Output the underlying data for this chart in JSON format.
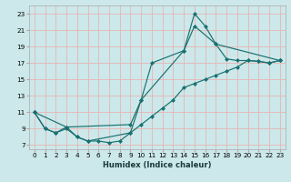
{
  "xlabel": "Humidex (Indice chaleur)",
  "bg_color": "#cce8ea",
  "grid_color_major": "#e8b4b4",
  "grid_color_minor": "#ddd8d8",
  "line_color": "#1a7070",
  "xlim": [
    -0.5,
    23.5
  ],
  "ylim": [
    6.5,
    24.0
  ],
  "xticks": [
    0,
    1,
    2,
    3,
    4,
    5,
    6,
    7,
    8,
    9,
    10,
    11,
    12,
    13,
    14,
    15,
    16,
    17,
    18,
    19,
    20,
    21,
    22,
    23
  ],
  "yticks": [
    7,
    9,
    11,
    13,
    15,
    17,
    19,
    21,
    23
  ],
  "line1_x": [
    0,
    1,
    2,
    3,
    4,
    5,
    6,
    7,
    8,
    9,
    10,
    11,
    12,
    13,
    14,
    15,
    16,
    17,
    18,
    19,
    20,
    21,
    22,
    23
  ],
  "line1_y": [
    11,
    9,
    8.5,
    9,
    8,
    7.5,
    7.5,
    7.3,
    7.5,
    8.5,
    9.5,
    10.5,
    11.5,
    12.5,
    14,
    14.5,
    15,
    15.5,
    16,
    16.5,
    17.3,
    17.2,
    17.0,
    17.3
  ],
  "line2_x": [
    0,
    1,
    2,
    3,
    4,
    5,
    9,
    10,
    11,
    14,
    15,
    16,
    17,
    18,
    19,
    20,
    21,
    22,
    23
  ],
  "line2_y": [
    11,
    9,
    8.5,
    9.2,
    8.0,
    7.5,
    8.5,
    12.5,
    17.0,
    18.5,
    23.0,
    21.5,
    19.3,
    17.5,
    17.3,
    17.3,
    17.2,
    17.0,
    17.3
  ],
  "line3_x": [
    0,
    3,
    9,
    10,
    14,
    15,
    17,
    23
  ],
  "line3_y": [
    11,
    9.2,
    9.5,
    12.5,
    18.5,
    21.5,
    19.3,
    17.3
  ],
  "markersize": 2.5
}
